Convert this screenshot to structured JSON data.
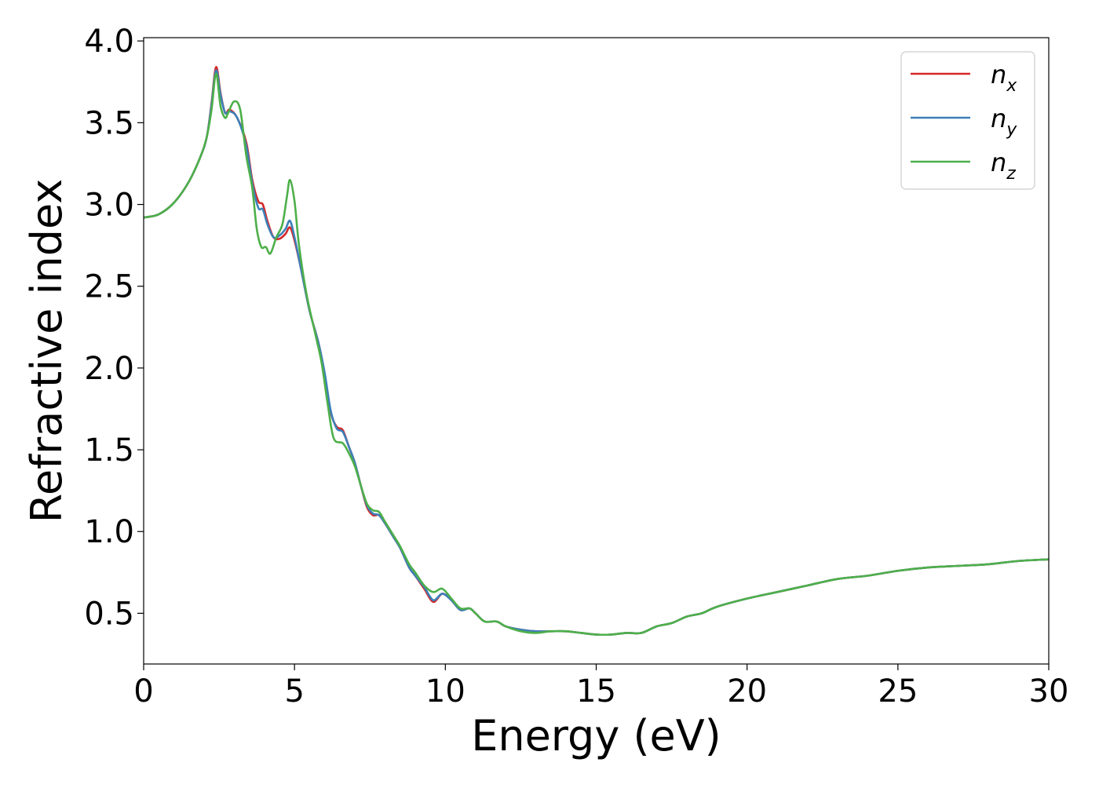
{
  "chart_data": {
    "type": "line",
    "title": "",
    "xlabel": "Energy (eV)",
    "ylabel": "Refractive index",
    "xlim": [
      0,
      30
    ],
    "ylim": [
      0.19,
      4.02
    ],
    "xticks": [
      "0",
      "5",
      "10",
      "15",
      "20",
      "25",
      "30"
    ],
    "yticks": [
      "0.5",
      "1.0",
      "1.5",
      "2.0",
      "2.5",
      "3.0",
      "3.5",
      "4.0"
    ],
    "grid": false,
    "legend_position": "top-right",
    "series": [
      {
        "name": "n_x",
        "legend_base": "n",
        "legend_sub": "x",
        "color": "#d62728",
        "points": [
          [
            0,
            2.92
          ],
          [
            0.5,
            2.94
          ],
          [
            1.0,
            3.01
          ],
          [
            1.5,
            3.14
          ],
          [
            1.9,
            3.3
          ],
          [
            2.1,
            3.42
          ],
          [
            2.25,
            3.62
          ],
          [
            2.4,
            3.84
          ],
          [
            2.55,
            3.68
          ],
          [
            2.7,
            3.56
          ],
          [
            2.85,
            3.58
          ],
          [
            3.1,
            3.53
          ],
          [
            3.4,
            3.38
          ],
          [
            3.6,
            3.15
          ],
          [
            3.8,
            3.02
          ],
          [
            3.95,
            3.0
          ],
          [
            4.1,
            2.9
          ],
          [
            4.3,
            2.8
          ],
          [
            4.5,
            2.79
          ],
          [
            4.7,
            2.82
          ],
          [
            4.85,
            2.86
          ],
          [
            5.0,
            2.78
          ],
          [
            5.2,
            2.62
          ],
          [
            5.5,
            2.35
          ],
          [
            5.8,
            2.15
          ],
          [
            6.0,
            1.95
          ],
          [
            6.2,
            1.73
          ],
          [
            6.4,
            1.64
          ],
          [
            6.6,
            1.62
          ],
          [
            6.8,
            1.52
          ],
          [
            7.0,
            1.42
          ],
          [
            7.2,
            1.28
          ],
          [
            7.4,
            1.15
          ],
          [
            7.6,
            1.1
          ],
          [
            7.8,
            1.1
          ],
          [
            8.0,
            1.05
          ],
          [
            8.3,
            0.96
          ],
          [
            8.5,
            0.9
          ],
          [
            8.8,
            0.78
          ],
          [
            9.0,
            0.73
          ],
          [
            9.3,
            0.65
          ],
          [
            9.6,
            0.57
          ],
          [
            9.9,
            0.62
          ],
          [
            10.2,
            0.58
          ],
          [
            10.5,
            0.52
          ],
          [
            10.8,
            0.53
          ],
          [
            11.0,
            0.5
          ],
          [
            11.3,
            0.45
          ],
          [
            11.7,
            0.45
          ],
          [
            12.0,
            0.42
          ],
          [
            12.5,
            0.4
          ],
          [
            13.0,
            0.39
          ],
          [
            13.5,
            0.39
          ],
          [
            14.0,
            0.39
          ],
          [
            14.5,
            0.38
          ],
          [
            15.0,
            0.37
          ],
          [
            15.5,
            0.37
          ],
          [
            16.0,
            0.38
          ],
          [
            16.5,
            0.38
          ],
          [
            17.0,
            0.42
          ],
          [
            17.5,
            0.44
          ],
          [
            18.0,
            0.48
          ],
          [
            18.5,
            0.5
          ],
          [
            19.0,
            0.54
          ],
          [
            20.0,
            0.59
          ],
          [
            21.0,
            0.63
          ],
          [
            22.0,
            0.67
          ],
          [
            23.0,
            0.71
          ],
          [
            24.0,
            0.73
          ],
          [
            25.0,
            0.76
          ],
          [
            26.0,
            0.78
          ],
          [
            27.0,
            0.79
          ],
          [
            28.0,
            0.8
          ],
          [
            29.0,
            0.82
          ],
          [
            30.0,
            0.83
          ]
        ]
      },
      {
        "name": "n_y",
        "legend_base": "n",
        "legend_sub": "y",
        "color": "#3d7fb8",
        "points": [
          [
            0,
            2.92
          ],
          [
            0.5,
            2.94
          ],
          [
            1.0,
            3.01
          ],
          [
            1.5,
            3.14
          ],
          [
            1.9,
            3.3
          ],
          [
            2.1,
            3.42
          ],
          [
            2.25,
            3.61
          ],
          [
            2.4,
            3.82
          ],
          [
            2.55,
            3.67
          ],
          [
            2.7,
            3.56
          ],
          [
            2.85,
            3.57
          ],
          [
            3.1,
            3.53
          ],
          [
            3.4,
            3.36
          ],
          [
            3.6,
            3.13
          ],
          [
            3.8,
            2.98
          ],
          [
            3.95,
            2.97
          ],
          [
            4.1,
            2.88
          ],
          [
            4.3,
            2.8
          ],
          [
            4.5,
            2.81
          ],
          [
            4.7,
            2.85
          ],
          [
            4.85,
            2.9
          ],
          [
            5.0,
            2.8
          ],
          [
            5.2,
            2.62
          ],
          [
            5.5,
            2.35
          ],
          [
            5.8,
            2.15
          ],
          [
            6.0,
            1.97
          ],
          [
            6.2,
            1.74
          ],
          [
            6.4,
            1.63
          ],
          [
            6.6,
            1.61
          ],
          [
            6.8,
            1.52
          ],
          [
            7.0,
            1.42
          ],
          [
            7.2,
            1.28
          ],
          [
            7.4,
            1.16
          ],
          [
            7.6,
            1.11
          ],
          [
            7.8,
            1.1
          ],
          [
            8.0,
            1.05
          ],
          [
            8.3,
            0.96
          ],
          [
            8.5,
            0.9
          ],
          [
            8.8,
            0.78
          ],
          [
            9.0,
            0.73
          ],
          [
            9.3,
            0.66
          ],
          [
            9.6,
            0.58
          ],
          [
            9.9,
            0.62
          ],
          [
            10.2,
            0.58
          ],
          [
            10.5,
            0.52
          ],
          [
            10.8,
            0.53
          ],
          [
            11.0,
            0.5
          ],
          [
            11.3,
            0.45
          ],
          [
            11.7,
            0.45
          ],
          [
            12.0,
            0.42
          ],
          [
            12.5,
            0.4
          ],
          [
            13.0,
            0.39
          ],
          [
            13.5,
            0.39
          ],
          [
            14.0,
            0.39
          ],
          [
            14.5,
            0.38
          ],
          [
            15.0,
            0.37
          ],
          [
            15.5,
            0.37
          ],
          [
            16.0,
            0.38
          ],
          [
            16.5,
            0.38
          ],
          [
            17.0,
            0.42
          ],
          [
            17.5,
            0.44
          ],
          [
            18.0,
            0.48
          ],
          [
            18.5,
            0.5
          ],
          [
            19.0,
            0.54
          ],
          [
            20.0,
            0.59
          ],
          [
            21.0,
            0.63
          ],
          [
            22.0,
            0.67
          ],
          [
            23.0,
            0.71
          ],
          [
            24.0,
            0.73
          ],
          [
            25.0,
            0.76
          ],
          [
            26.0,
            0.78
          ],
          [
            27.0,
            0.79
          ],
          [
            28.0,
            0.8
          ],
          [
            29.0,
            0.82
          ],
          [
            30.0,
            0.83
          ]
        ]
      },
      {
        "name": "n_z",
        "legend_base": "n",
        "legend_sub": "z",
        "color": "#4daf4a",
        "points": [
          [
            0,
            2.92
          ],
          [
            0.5,
            2.94
          ],
          [
            1.0,
            3.01
          ],
          [
            1.5,
            3.14
          ],
          [
            1.9,
            3.3
          ],
          [
            2.1,
            3.42
          ],
          [
            2.25,
            3.58
          ],
          [
            2.4,
            3.8
          ],
          [
            2.55,
            3.6
          ],
          [
            2.7,
            3.53
          ],
          [
            2.8,
            3.56
          ],
          [
            3.0,
            3.63
          ],
          [
            3.2,
            3.58
          ],
          [
            3.4,
            3.3
          ],
          [
            3.6,
            3.1
          ],
          [
            3.75,
            2.85
          ],
          [
            3.9,
            2.74
          ],
          [
            4.05,
            2.74
          ],
          [
            4.2,
            2.7
          ],
          [
            4.4,
            2.8
          ],
          [
            4.6,
            2.88
          ],
          [
            4.75,
            3.05
          ],
          [
            4.85,
            3.15
          ],
          [
            5.0,
            3.02
          ],
          [
            5.15,
            2.75
          ],
          [
            5.4,
            2.45
          ],
          [
            5.7,
            2.2
          ],
          [
            5.9,
            2.03
          ],
          [
            6.1,
            1.78
          ],
          [
            6.3,
            1.57
          ],
          [
            6.6,
            1.54
          ],
          [
            6.8,
            1.48
          ],
          [
            7.0,
            1.4
          ],
          [
            7.2,
            1.28
          ],
          [
            7.4,
            1.17
          ],
          [
            7.6,
            1.13
          ],
          [
            7.8,
            1.12
          ],
          [
            8.0,
            1.06
          ],
          [
            8.3,
            0.97
          ],
          [
            8.5,
            0.91
          ],
          [
            8.8,
            0.8
          ],
          [
            9.0,
            0.75
          ],
          [
            9.3,
            0.67
          ],
          [
            9.6,
            0.63
          ],
          [
            9.9,
            0.65
          ],
          [
            10.2,
            0.59
          ],
          [
            10.5,
            0.53
          ],
          [
            10.8,
            0.53
          ],
          [
            11.0,
            0.5
          ],
          [
            11.3,
            0.45
          ],
          [
            11.7,
            0.45
          ],
          [
            12.0,
            0.42
          ],
          [
            12.5,
            0.39
          ],
          [
            13.0,
            0.38
          ],
          [
            13.5,
            0.39
          ],
          [
            14.0,
            0.39
          ],
          [
            14.5,
            0.38
          ],
          [
            15.0,
            0.37
          ],
          [
            15.5,
            0.37
          ],
          [
            16.0,
            0.38
          ],
          [
            16.5,
            0.38
          ],
          [
            17.0,
            0.42
          ],
          [
            17.5,
            0.44
          ],
          [
            18.0,
            0.48
          ],
          [
            18.5,
            0.5
          ],
          [
            19.0,
            0.54
          ],
          [
            20.0,
            0.59
          ],
          [
            21.0,
            0.63
          ],
          [
            22.0,
            0.67
          ],
          [
            23.0,
            0.71
          ],
          [
            24.0,
            0.73
          ],
          [
            25.0,
            0.76
          ],
          [
            26.0,
            0.78
          ],
          [
            27.0,
            0.79
          ],
          [
            28.0,
            0.8
          ],
          [
            29.0,
            0.82
          ],
          [
            30.0,
            0.83
          ]
        ]
      }
    ]
  }
}
